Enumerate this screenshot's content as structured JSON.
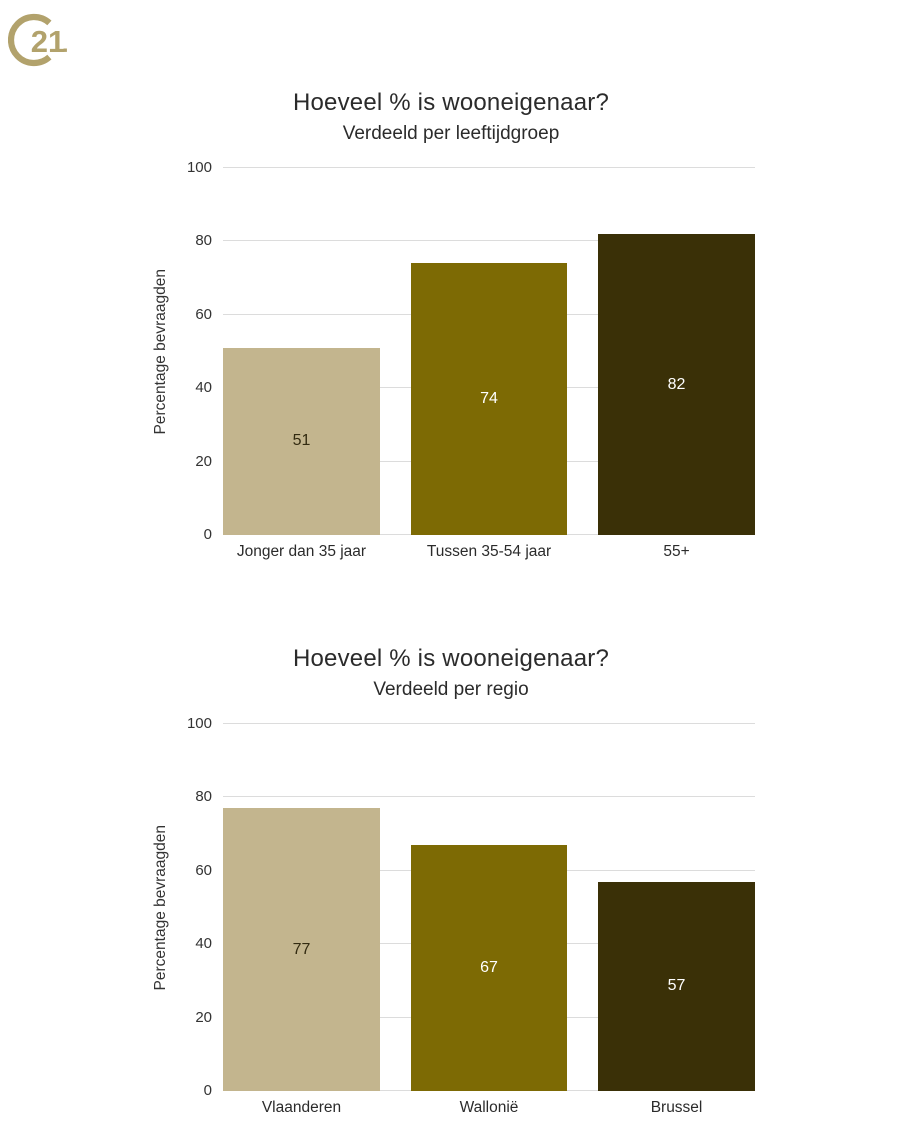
{
  "logo": {
    "brand": "Century 21",
    "numeral": "21",
    "color": "#B2A26C"
  },
  "colors": {
    "background": "#FFFFFF",
    "gridline": "#DCDCDC",
    "text": "#2B2B2B",
    "axis_text": "#333333"
  },
  "chart_data": [
    {
      "type": "bar",
      "title": "Hoeveel % is wooneigenaar?",
      "subtitle": "Verdeeld per leeftijdgroep",
      "ylabel": "Percentage bevraagden",
      "xlabel": "",
      "categories": [
        "Jonger dan 35 jaar",
        "Tussen 35-54 jaar",
        "55+"
      ],
      "values": [
        51,
        74,
        82
      ],
      "bar_colors": [
        "#C3B58E",
        "#7D6A04",
        "#3A3007"
      ],
      "value_label_colors": [
        "#332B11",
        "#FFFFFF",
        "#FFFFFF"
      ],
      "ylim": [
        0,
        100
      ],
      "yticks": [
        0,
        20,
        40,
        60,
        80,
        100
      ],
      "grid": true,
      "legend": "none"
    },
    {
      "type": "bar",
      "title": "Hoeveel % is wooneigenaar?",
      "subtitle": "Verdeeld per regio",
      "ylabel": "Percentage bevraagden",
      "xlabel": "",
      "categories": [
        "Vlaanderen",
        "Wallonië",
        "Brussel"
      ],
      "values": [
        77,
        67,
        57
      ],
      "bar_colors": [
        "#C3B58E",
        "#7D6A04",
        "#3A3007"
      ],
      "value_label_colors": [
        "#332B11",
        "#FFFFFF",
        "#FFFFFF"
      ],
      "ylim": [
        0,
        100
      ],
      "yticks": [
        0,
        20,
        40,
        60,
        80,
        100
      ],
      "grid": true,
      "legend": "none"
    }
  ]
}
